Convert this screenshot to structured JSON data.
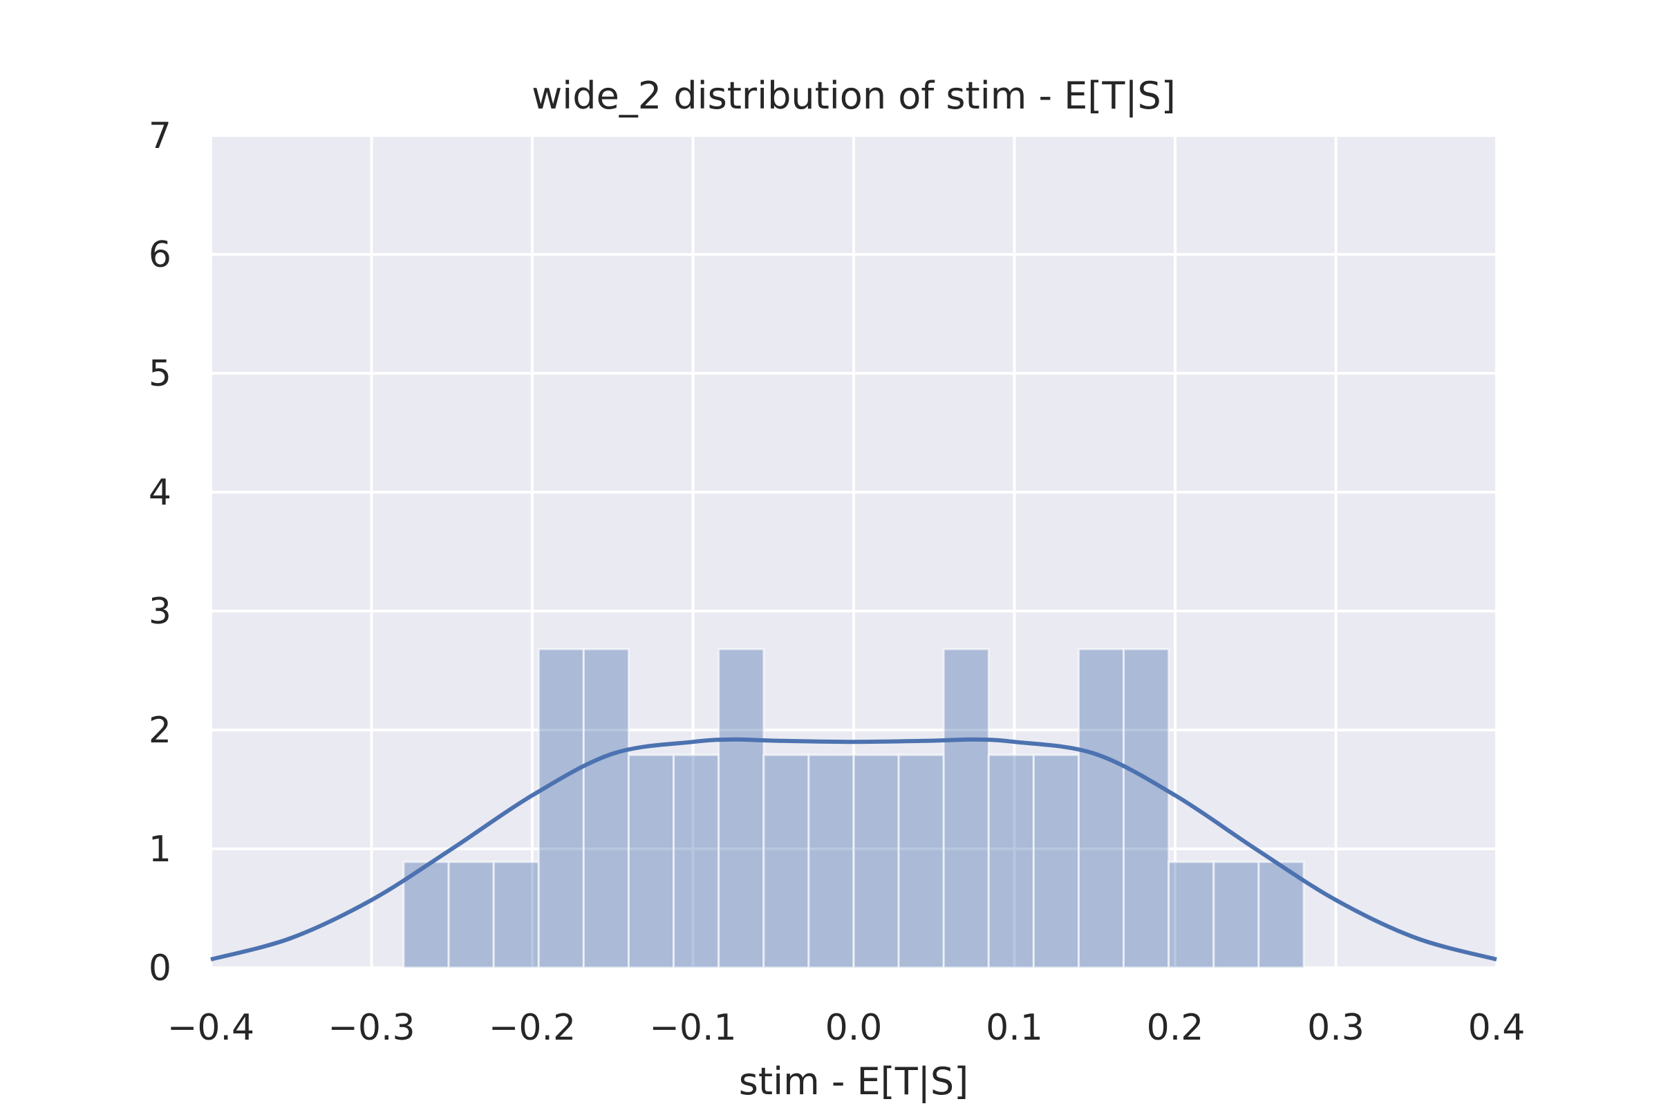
{
  "chart_data": {
    "type": "bar",
    "title": "wide_2 distribution of stim - E[T|S]",
    "xlabel": "stim - E[T|S]",
    "ylabel": "",
    "xlim": [
      -0.4,
      0.4
    ],
    "ylim": [
      0,
      7
    ],
    "grid": true,
    "x_ticks": [
      "−0.4",
      "−0.3",
      "−0.2",
      "−0.1",
      "0.0",
      "0.1",
      "0.2",
      "0.3",
      "0.4"
    ],
    "x_tick_values": [
      -0.4,
      -0.3,
      -0.2,
      -0.1,
      0.0,
      0.1,
      0.2,
      0.3,
      0.4
    ],
    "y_ticks": [
      "0",
      "1",
      "2",
      "3",
      "4",
      "5",
      "6",
      "7"
    ],
    "y_tick_values": [
      0,
      1,
      2,
      3,
      4,
      5,
      6,
      7
    ],
    "histogram": {
      "bin_edges": [
        -0.28,
        -0.252,
        -0.224,
        -0.196,
        -0.168,
        -0.14,
        -0.112,
        -0.084,
        -0.056,
        -0.028,
        0.0,
        0.028,
        0.056,
        0.084,
        0.112,
        0.14,
        0.168,
        0.196,
        0.224,
        0.252,
        0.28
      ],
      "densities": [
        0.89,
        0.89,
        0.89,
        2.68,
        2.68,
        1.79,
        1.79,
        2.68,
        1.79,
        1.79,
        1.79,
        1.79,
        2.68,
        1.79,
        1.79,
        2.68,
        2.68,
        0.89,
        0.89,
        0.89
      ]
    },
    "kde": {
      "x": [
        -0.4,
        -0.35,
        -0.3,
        -0.25,
        -0.2,
        -0.15,
        -0.1,
        -0.075,
        -0.05,
        0.0,
        0.05,
        0.075,
        0.1,
        0.15,
        0.2,
        0.25,
        0.3,
        0.35,
        0.4
      ],
      "y": [
        0.07,
        0.25,
        0.57,
        1.0,
        1.45,
        1.8,
        1.9,
        1.92,
        1.91,
        1.9,
        1.91,
        1.92,
        1.9,
        1.8,
        1.45,
        1.0,
        0.57,
        0.25,
        0.07
      ]
    },
    "colors": {
      "plot_background": "#eaeaf2",
      "bar": "#4c72b0",
      "kde": "#4c72b0",
      "grid": "#ffffff",
      "text": "#262626"
    }
  }
}
